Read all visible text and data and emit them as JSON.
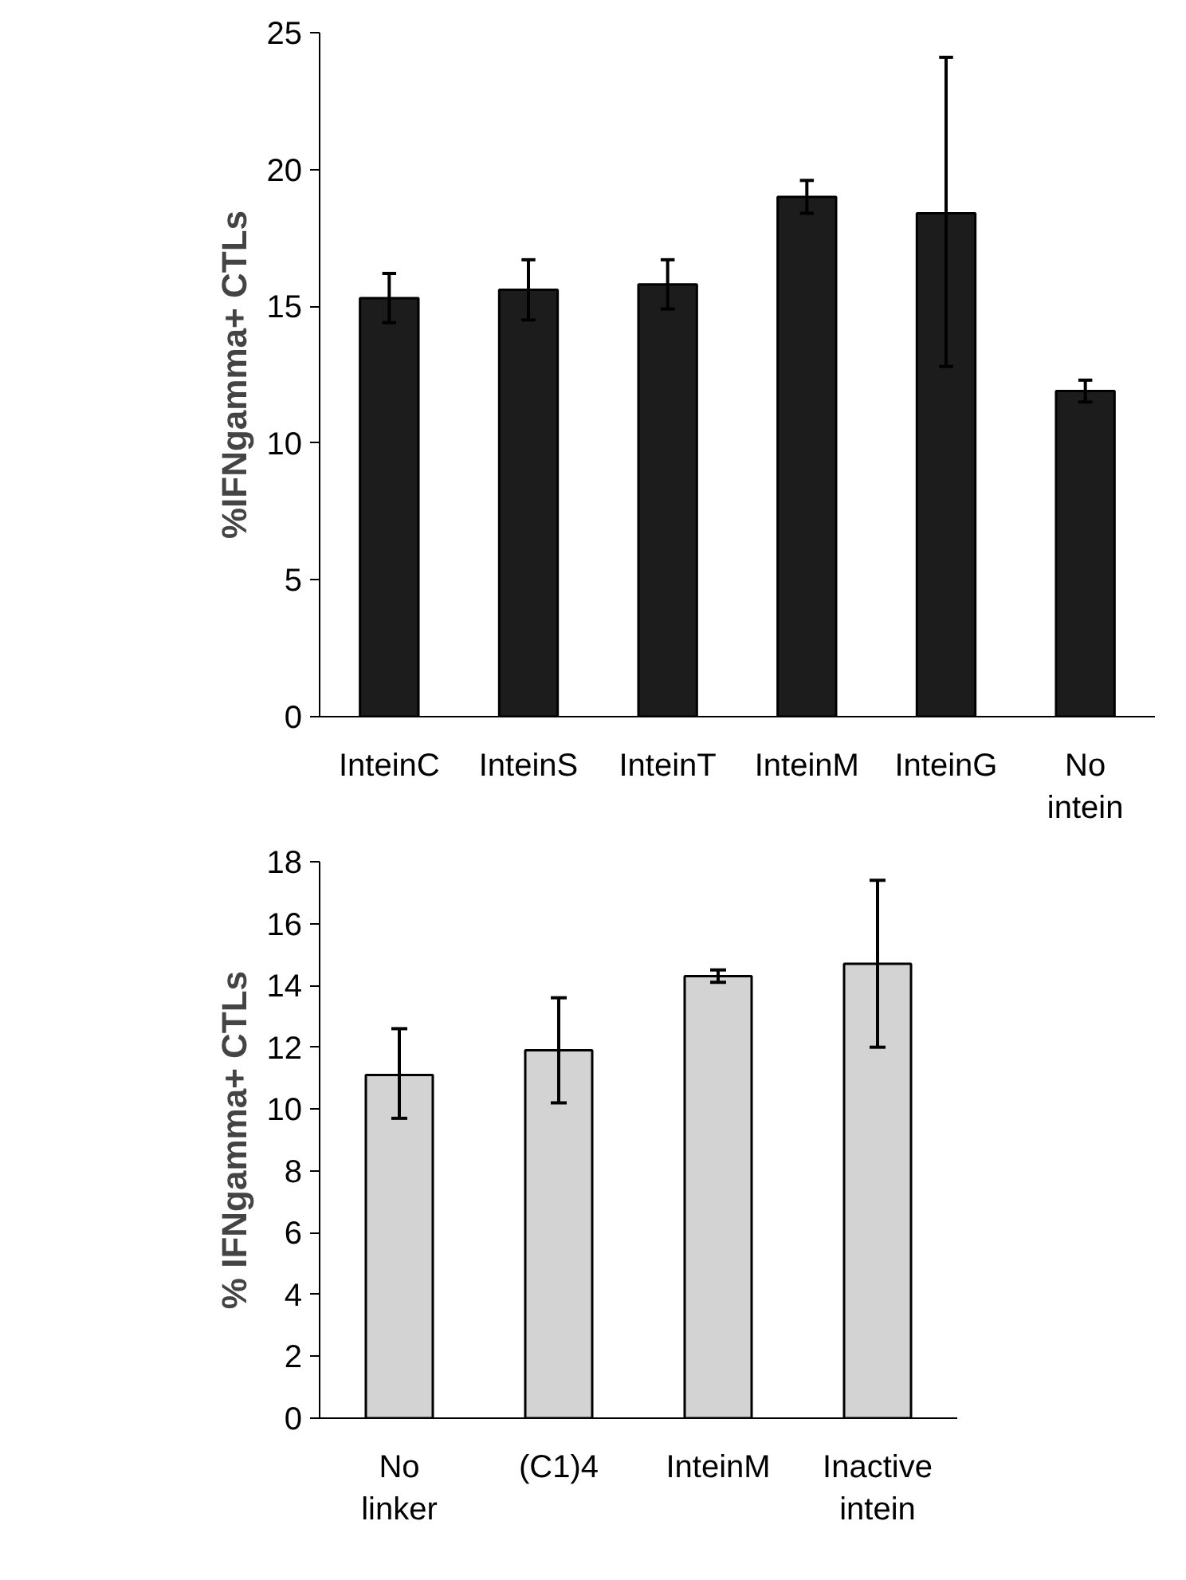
{
  "chart_data": [
    {
      "type": "bar",
      "ylabel": "%IFNgamma+ CTLs",
      "categories": [
        "InteinC",
        "InteinS",
        "InteinT",
        "InteinM",
        "InteinG",
        "No\nintein"
      ],
      "values": [
        15.3,
        15.6,
        15.8,
        19.0,
        18.4,
        11.9
      ],
      "errors": [
        [
          14.4,
          16.2
        ],
        [
          14.5,
          16.7
        ],
        [
          14.9,
          16.7
        ],
        [
          18.4,
          19.6
        ],
        [
          12.8,
          24.1
        ],
        [
          11.5,
          12.3
        ]
      ],
      "color": "#1c1c1c",
      "ylim": [
        0,
        25
      ],
      "yticks": [
        0,
        5,
        10,
        15,
        20,
        25
      ],
      "grid": false
    },
    {
      "type": "bar",
      "ylabel": "% IFNgamma+ CTLs",
      "categories": [
        "No\nlinker",
        "(C1)4",
        "InteinM",
        "Inactive\nintein"
      ],
      "values": [
        11.1,
        11.9,
        14.3,
        14.7
      ],
      "errors": [
        [
          9.7,
          12.6
        ],
        [
          10.2,
          13.6
        ],
        [
          14.1,
          14.5
        ],
        [
          12.0,
          17.4
        ]
      ],
      "color": "#d3d3d3",
      "ylim": [
        0,
        18
      ],
      "yticks": [
        0,
        2,
        4,
        6,
        8,
        10,
        12,
        14,
        16,
        18
      ],
      "grid": false
    }
  ]
}
